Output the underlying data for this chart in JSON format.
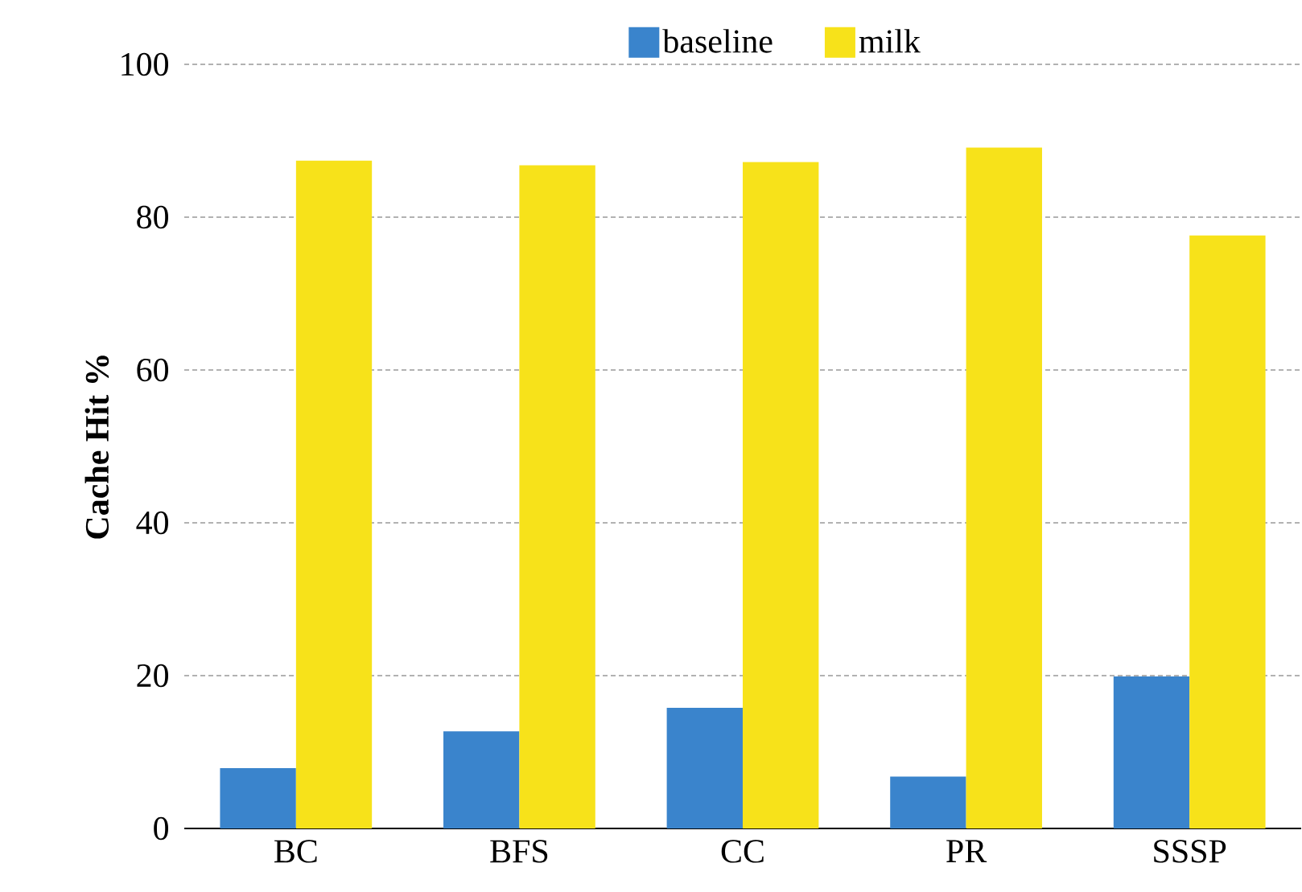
{
  "chart_data": {
    "type": "bar",
    "categories": [
      "BC",
      "BFS",
      "CC",
      "PR",
      "SSSP"
    ],
    "ylabel": "Cache Hit %",
    "ylim": [
      0,
      100
    ],
    "yticks": [
      0,
      20,
      40,
      60,
      80,
      100
    ],
    "grid": "y",
    "legend": "top",
    "series": [
      {
        "name": "baseline",
        "color": "#3a84cc",
        "values": [
          7.9,
          12.7,
          15.8,
          6.8,
          19.9
        ]
      },
      {
        "name": "milk",
        "color": "#f7e21a",
        "values": [
          87.4,
          86.8,
          87.2,
          89.1,
          77.6
        ]
      }
    ]
  }
}
